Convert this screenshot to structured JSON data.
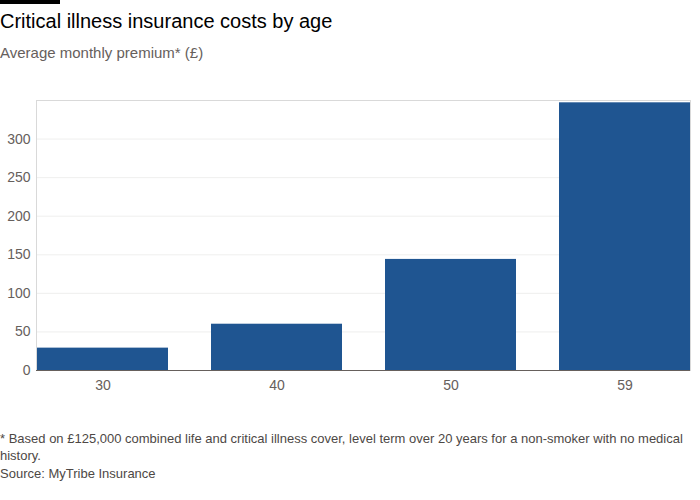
{
  "chart_data": {
    "type": "bar",
    "title": "Critical illness insurance costs by age",
    "subtitle": "Average monthly premium* (£)",
    "categories": [
      "30",
      "40",
      "50",
      "59"
    ],
    "values": [
      29,
      60,
      144,
      347
    ],
    "color": "#1f5591",
    "ylim": [
      0,
      350
    ],
    "yticks": [
      0,
      50,
      100,
      150,
      200,
      250,
      300
    ],
    "grid": true,
    "footnote": "* Based on £125,000 combined life and critical illness cover, level term over 20 years for a non-smoker with no medical history.",
    "source": "Source: MyTribe Insurance"
  }
}
